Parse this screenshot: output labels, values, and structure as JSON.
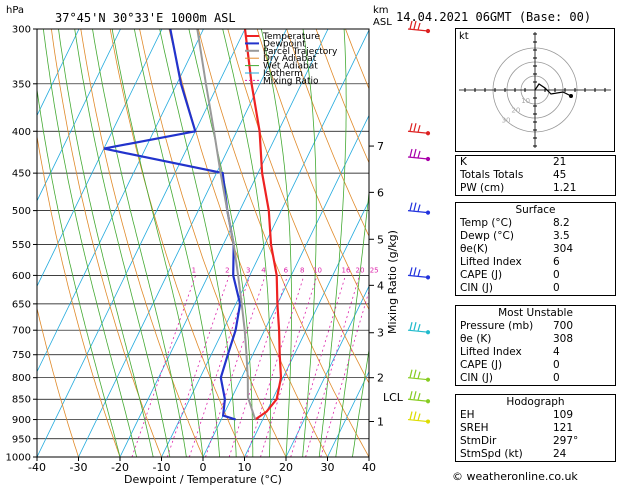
{
  "header": {
    "location": "37°45'N  30°33'E  1000m  ASL",
    "datetime": "14.04.2021  06GMT  (Base: 00)",
    "hpa_label": "hPa",
    "km_label": "km",
    "asl_label": "ASL"
  },
  "chart_data": {
    "type": "line",
    "title": "Skew-T log-P diagram",
    "xlabel": "Dewpoint / Temperature (°C)",
    "ylabel": "hPa",
    "xlim": [
      -40,
      40
    ],
    "ylim": [
      1000,
      300
    ],
    "x_ticks": [
      "-40",
      "-30",
      "-20",
      "-10",
      "0",
      "10",
      "20",
      "30",
      "40"
    ],
    "p_ticks": [
      300,
      350,
      400,
      450,
      500,
      550,
      600,
      650,
      700,
      750,
      800,
      850,
      900,
      950,
      1000
    ],
    "km_ticks": [
      {
        "label": "7",
        "p": 417
      },
      {
        "label": "6",
        "p": 475
      },
      {
        "label": "5",
        "p": 542
      },
      {
        "label": "4",
        "p": 617
      },
      {
        "label": "3",
        "p": 705
      },
      {
        "label": "2",
        "p": 800
      },
      {
        "label": "1",
        "p": 905
      }
    ],
    "lcl": {
      "label": "LCL",
      "p": 845
    },
    "mixing_ratio_label": "Mixing Ratio (g/kg)",
    "mixing_ratios": [
      "1",
      "2",
      "3",
      "4",
      "6",
      "8",
      "10",
      "16",
      "20",
      "25"
    ],
    "legend": [
      "Temperature",
      "Dewpoint",
      "Parcel Trajectory",
      "Dry Adiabat",
      "Wet Adiabat",
      "Isotherm",
      "Mixing Ratio"
    ],
    "legend_position": "top",
    "series": [
      {
        "name": "Temperature",
        "color": "#ee2222",
        "points": [
          [
            900,
            8.2
          ],
          [
            880,
            10.0
          ],
          [
            850,
            11.0
          ],
          [
            800,
            9.5
          ],
          [
            750,
            6.5
          ],
          [
            700,
            3.5
          ],
          [
            650,
            0.0
          ],
          [
            600,
            -3.5
          ],
          [
            550,
            -8.5
          ],
          [
            500,
            -13.0
          ],
          [
            450,
            -19.0
          ],
          [
            400,
            -24.5
          ],
          [
            350,
            -32.0
          ],
          [
            300,
            -40.0
          ]
        ]
      },
      {
        "name": "Dewpoint",
        "color": "#2233cc",
        "points": [
          [
            900,
            3.5
          ],
          [
            890,
            0.0
          ],
          [
            850,
            -1.5
          ],
          [
            800,
            -5.0
          ],
          [
            750,
            -6.0
          ],
          [
            700,
            -7.0
          ],
          [
            650,
            -9.0
          ],
          [
            600,
            -14.0
          ],
          [
            550,
            -17.5
          ],
          [
            500,
            -23.0
          ],
          [
            450,
            -28.5
          ],
          [
            420,
            -60.0
          ],
          [
            400,
            -40.0
          ],
          [
            350,
            -49.0
          ],
          [
            300,
            -58.0
          ]
        ]
      },
      {
        "name": "Parcel Trajectory",
        "color": "#999999",
        "points": [
          [
            900,
            8.2
          ],
          [
            845,
            3.8
          ],
          [
            800,
            1.5
          ],
          [
            750,
            -1.5
          ],
          [
            700,
            -4.8
          ],
          [
            650,
            -8.6
          ],
          [
            600,
            -12.8
          ],
          [
            550,
            -17.5
          ],
          [
            500,
            -23.0
          ],
          [
            450,
            -29.0
          ],
          [
            400,
            -35.5
          ],
          [
            350,
            -43.0
          ],
          [
            300,
            -51.5
          ]
        ]
      }
    ],
    "wind_barbs_colors": [
      "#dd2222",
      "#aa00aa",
      "#2233dd",
      "#22bbcc",
      "#88cc22",
      "#dddd00"
    ]
  },
  "hodograph": {
    "label": "kt",
    "rings": [
      "10",
      "20",
      "30"
    ]
  },
  "stats": {
    "k_label": "K",
    "k": "21",
    "tt_label": "Totals Totals",
    "tt": "45",
    "pw_label": "PW (cm)",
    "pw": "1.21",
    "surface_title": "Surface",
    "s_temp_label": "Temp (°C)",
    "s_temp": "8.2",
    "s_dewp_label": "Dewp (°C)",
    "s_dewp": "3.5",
    "s_theta_label": "θe(K)",
    "s_theta": "304",
    "s_li_label": "Lifted Index",
    "s_li": "6",
    "s_cape_label": "CAPE (J)",
    "s_cape": "0",
    "s_cin_label": "CIN (J)",
    "s_cin": "0",
    "mu_title": "Most Unstable",
    "mu_p_label": "Pressure (mb)",
    "mu_p": "700",
    "mu_theta_label": "θe (K)",
    "mu_theta": "308",
    "mu_li_label": "Lifted Index",
    "mu_li": "4",
    "mu_cape_label": "CAPE (J)",
    "mu_cape": "0",
    "mu_cin_label": "CIN (J)",
    "mu_cin": "0",
    "hodo_title": "Hodograph",
    "eh_label": "EH",
    "eh": "109",
    "srh_label": "SREH",
    "srh": "121",
    "dir_label": "StmDir",
    "dir": "297°",
    "spd_label": "StmSpd (kt)",
    "spd": "24"
  },
  "footer": "© weatheronline.co.uk"
}
